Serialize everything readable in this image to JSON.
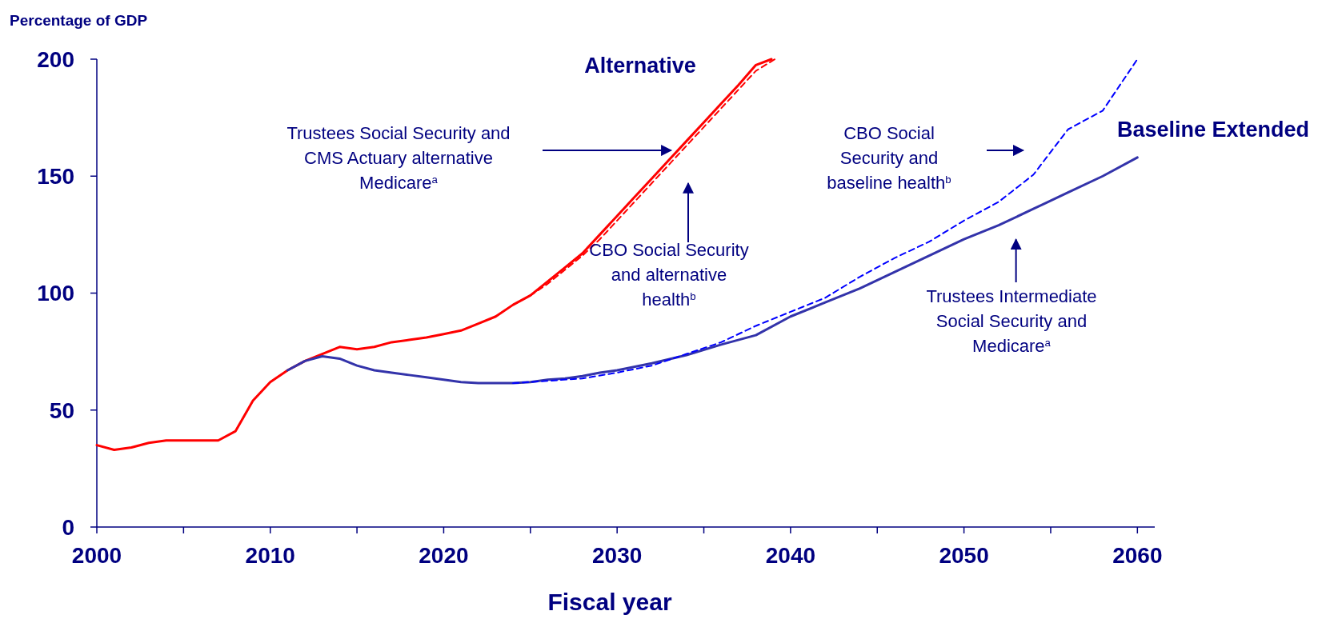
{
  "chart_data": {
    "type": "line",
    "ylabel": "Percentage of GDP",
    "xlabel": "Fiscal year",
    "xlim": [
      2000,
      2061
    ],
    "xticks": [
      2000,
      {
        "value": 2005,
        "label": null
      },
      2010,
      {
        "value": 2015,
        "label": null
      },
      2020,
      {
        "value": 2025,
        "label": null
      },
      2030,
      {
        "value": 2035,
        "label": null
      },
      2040,
      {
        "value": 2045,
        "label": null
      },
      2050,
      {
        "value": 2055,
        "label": null
      },
      2060
    ],
    "ylim": [
      0,
      200
    ],
    "yticks": [
      0,
      50,
      100,
      150,
      200
    ],
    "grid": false,
    "series": [
      {
        "color": "#ff0000",
        "line_style": "solid",
        "x": [
          2000,
          2001,
          2002,
          2003,
          2004,
          2005,
          2006,
          2007,
          2008,
          2009,
          2010,
          2011,
          2012,
          2013,
          2014,
          2015,
          2016,
          2017,
          2018,
          2019,
          2020,
          2021,
          2022,
          2023,
          2024,
          2025,
          2026,
          2027,
          2028,
          2029,
          2030,
          2031,
          2032,
          2033,
          2034,
          2035,
          2036,
          2037,
          2038,
          2038.9
        ],
        "values": [
          35,
          33,
          34,
          36,
          37,
          37,
          37,
          37,
          41,
          54,
          62,
          67,
          71,
          74,
          77,
          76,
          77,
          79,
          80,
          81,
          82.5,
          84,
          87,
          90,
          95,
          99,
          105,
          111,
          117,
          125,
          133,
          141,
          149,
          157,
          165,
          173,
          181,
          189,
          197.5,
          200
        ]
      },
      {
        "color": "#ff0000",
        "line_style": "dashed",
        "x": [
          2024,
          2025,
          2026,
          2027,
          2028,
          2029,
          2030,
          2031,
          2032,
          2033,
          2034,
          2035,
          2036,
          2037,
          2038,
          2039.1
        ],
        "values": [
          95,
          99,
          104,
          110,
          116,
          123,
          131,
          139,
          147,
          155,
          163,
          171,
          179,
          187,
          195,
          200
        ]
      },
      {
        "color": "#3333aa",
        "line_style": "solid",
        "x": [
          2011,
          2012,
          2013,
          2014,
          2015,
          2016,
          2017,
          2018,
          2019,
          2020,
          2021,
          2022,
          2023,
          2024,
          2025,
          2026,
          2027,
          2028,
          2029,
          2030,
          2032,
          2034,
          2036,
          2038,
          2040,
          2042,
          2044,
          2046,
          2048,
          2050,
          2052,
          2054,
          2056,
          2058,
          2060
        ],
        "values": [
          67,
          71,
          73,
          72,
          69,
          67,
          66,
          65,
          64,
          63,
          62,
          61.5,
          61.5,
          61.5,
          62,
          63,
          63.5,
          64.5,
          66,
          67,
          70,
          73.5,
          78,
          82,
          90,
          96,
          102,
          109,
          116,
          123,
          129,
          136,
          143,
          150,
          158
        ]
      },
      {
        "color": "#0000ff",
        "line_style": "dashed",
        "x": [
          2024,
          2026,
          2028,
          2030,
          2032,
          2034,
          2036,
          2038,
          2040,
          2042,
          2044,
          2046,
          2048,
          2050,
          2052,
          2054,
          2056,
          2058,
          2060
        ],
        "values": [
          61.5,
          62.5,
          63.5,
          66,
          69,
          74,
          79,
          86,
          92,
          98,
          107,
          115,
          122,
          131,
          139,
          150.6,
          170,
          178,
          200
        ]
      }
    ],
    "annotations": [
      "Trustees Social Security and CMS Actuary alternative Medicare$^{a}$",
      "CBO Social Security and alternative health$^{b}$",
      "CBO Social Security and baseline health$^{b}$",
      "Trustees Intermediate Social Security and Medicare$^{a}$",
      "Alternative",
      "Baseline Extended"
    ]
  }
}
